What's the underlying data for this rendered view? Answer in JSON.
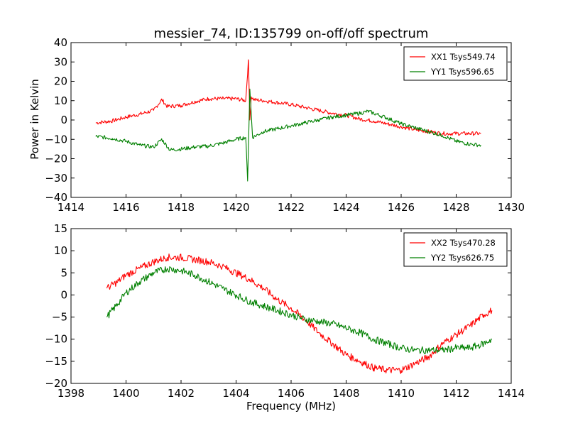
{
  "figure": {
    "title": "messier_74, ID:135799 on-off/off spectrum",
    "xlabel": "Frequency (MHz)",
    "ylabel": "Power in Kelvin"
  },
  "chart_data": [
    {
      "type": "line",
      "title": "messier_74, ID:135799 on-off/off spectrum",
      "xlabel": "",
      "ylabel": "Power in Kelvin",
      "xlim": [
        1414,
        1430
      ],
      "ylim": [
        -40,
        40
      ],
      "xticks": [
        "1414",
        "1416",
        "1418",
        "1420",
        "1422",
        "1424",
        "1426",
        "1428",
        "1430"
      ],
      "yticks": [
        "40",
        "30",
        "20",
        "10",
        "0",
        "−10",
        "−20",
        "−30",
        "−40"
      ],
      "grid": false,
      "legend_position": "top-right",
      "series": [
        {
          "name": "XX1 Tsys549.74",
          "color": "#ff0000",
          "x": [
            1414.9,
            1415.5,
            1416.0,
            1416.5,
            1417.0,
            1417.3,
            1417.5,
            1418.0,
            1418.5,
            1419.0,
            1419.5,
            1420.0,
            1420.35,
            1420.45,
            1420.5,
            1420.55,
            1420.65,
            1421.0,
            1421.5,
            1422.0,
            1422.5,
            1423.0,
            1423.5,
            1424.0,
            1424.5,
            1425.0,
            1425.5,
            1426.0,
            1426.5,
            1427.0,
            1427.5,
            1428.0,
            1428.5,
            1428.9
          ],
          "y": [
            -1.5,
            -0.5,
            1.5,
            3.0,
            5.0,
            10.5,
            7.0,
            7.5,
            9.5,
            11.0,
            11.0,
            11.0,
            10.0,
            31.0,
            0.0,
            12.0,
            10.5,
            10.0,
            9.0,
            8.0,
            6.5,
            5.0,
            3.5,
            2.5,
            0.5,
            -0.5,
            -2.0,
            -3.5,
            -5.0,
            -6.0,
            -7.0,
            -7.0,
            -7.0,
            -7.0
          ]
        },
        {
          "name": "YY1 Tsys596.65",
          "color": "#008000",
          "x": [
            1414.9,
            1415.5,
            1416.0,
            1416.5,
            1417.0,
            1417.3,
            1417.6,
            1418.0,
            1418.5,
            1419.0,
            1419.5,
            1420.0,
            1420.35,
            1420.42,
            1420.5,
            1420.6,
            1421.0,
            1421.5,
            1422.0,
            1422.5,
            1423.0,
            1423.5,
            1424.0,
            1424.5,
            1424.8,
            1425.0,
            1425.5,
            1426.0,
            1426.5,
            1427.0,
            1427.5,
            1428.0,
            1428.5,
            1428.9
          ],
          "y": [
            -8.5,
            -9.5,
            -11.0,
            -13.0,
            -14.0,
            -10.0,
            -15.5,
            -15.0,
            -14.0,
            -13.5,
            -12.0,
            -10.0,
            -9.0,
            -31.0,
            16.0,
            -9.0,
            -6.0,
            -4.5,
            -3.0,
            -1.5,
            0.0,
            1.5,
            2.5,
            3.5,
            4.5,
            3.5,
            1.0,
            -2.0,
            -4.0,
            -6.0,
            -8.0,
            -11.0,
            -12.5,
            -13.0
          ]
        }
      ]
    },
    {
      "type": "line",
      "title": "",
      "xlabel": "Frequency (MHz)",
      "ylabel": "",
      "xlim": [
        1398,
        1414
      ],
      "ylim": [
        -20,
        15
      ],
      "xticks": [
        "1398",
        "1400",
        "1402",
        "1404",
        "1406",
        "1408",
        "1410",
        "1412",
        "1414"
      ],
      "yticks": [
        "15",
        "10",
        "5",
        "0",
        "−5",
        "−10",
        "−15",
        "−20"
      ],
      "grid": false,
      "legend_position": "top-right",
      "series": [
        {
          "name": "XX2 Tsys470.28",
          "color": "#ff0000",
          "x": [
            1399.3,
            1399.7,
            1400.0,
            1400.5,
            1401.0,
            1401.5,
            1402.0,
            1402.5,
            1403.0,
            1403.5,
            1404.0,
            1404.5,
            1405.0,
            1405.5,
            1406.0,
            1406.5,
            1407.0,
            1407.5,
            1408.0,
            1408.5,
            1409.0,
            1409.5,
            1410.0,
            1410.5,
            1411.0,
            1411.5,
            1412.0,
            1412.5,
            1413.0,
            1413.3
          ],
          "y": [
            1.5,
            3.0,
            4.5,
            6.0,
            7.5,
            8.5,
            8.5,
            8.0,
            7.5,
            6.5,
            5.0,
            3.5,
            1.5,
            -1.0,
            -3.0,
            -5.5,
            -8.5,
            -11.0,
            -13.5,
            -15.0,
            -16.5,
            -17.0,
            -17.0,
            -15.5,
            -14.0,
            -11.0,
            -9.0,
            -7.0,
            -4.5,
            -3.5
          ]
        },
        {
          "name": "YY2 Tsys626.75",
          "color": "#008000",
          "x": [
            1399.3,
            1399.7,
            1400.0,
            1400.5,
            1401.0,
            1401.5,
            1402.0,
            1402.5,
            1403.0,
            1403.5,
            1404.0,
            1404.5,
            1405.0,
            1405.5,
            1406.0,
            1406.5,
            1407.0,
            1407.5,
            1408.0,
            1408.5,
            1409.0,
            1409.5,
            1410.0,
            1410.5,
            1411.0,
            1411.5,
            1412.0,
            1412.5,
            1413.0,
            1413.3
          ],
          "y": [
            -5.0,
            -2.0,
            0.5,
            3.0,
            5.0,
            6.0,
            5.5,
            4.5,
            3.0,
            1.5,
            0.0,
            -1.5,
            -2.5,
            -3.5,
            -4.5,
            -5.5,
            -6.0,
            -6.5,
            -7.5,
            -8.5,
            -10.0,
            -11.0,
            -12.0,
            -12.5,
            -12.5,
            -12.5,
            -12.0,
            -12.0,
            -11.0,
            -10.0
          ]
        }
      ]
    }
  ]
}
